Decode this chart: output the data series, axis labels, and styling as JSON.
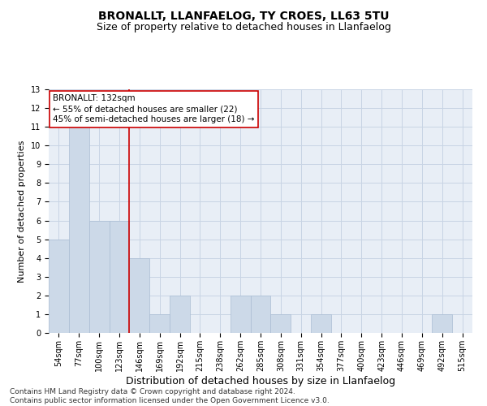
{
  "title_line1": "BRONALLT, LLANFAELOG, TY CROES, LL63 5TU",
  "title_line2": "Size of property relative to detached houses in Llanfaelog",
  "xlabel": "Distribution of detached houses by size in Llanfaelog",
  "ylabel": "Number of detached properties",
  "categories": [
    "54sqm",
    "77sqm",
    "100sqm",
    "123sqm",
    "146sqm",
    "169sqm",
    "192sqm",
    "215sqm",
    "238sqm",
    "262sqm",
    "285sqm",
    "308sqm",
    "331sqm",
    "354sqm",
    "377sqm",
    "400sqm",
    "423sqm",
    "446sqm",
    "469sqm",
    "492sqm",
    "515sqm"
  ],
  "values": [
    5,
    11,
    6,
    6,
    4,
    1,
    2,
    0,
    0,
    2,
    2,
    1,
    0,
    1,
    0,
    0,
    0,
    0,
    0,
    1,
    0
  ],
  "bar_color": "#ccd9e8",
  "bar_edge_color": "#aabdd4",
  "grid_color": "#c8d4e4",
  "background_color": "#e8eef6",
  "vline_x_index": 3.5,
  "vline_color": "#cc0000",
  "annotation_text": "BRONALLT: 132sqm\n← 55% of detached houses are smaller (22)\n45% of semi-detached houses are larger (18) →",
  "annotation_box_facecolor": "#ffffff",
  "annotation_box_edgecolor": "#cc0000",
  "ylim": [
    0,
    13
  ],
  "yticks": [
    0,
    1,
    2,
    3,
    4,
    5,
    6,
    7,
    8,
    9,
    10,
    11,
    12,
    13
  ],
  "footnote": "Contains HM Land Registry data © Crown copyright and database right 2024.\nContains public sector information licensed under the Open Government Licence v3.0.",
  "title_fontsize": 10,
  "subtitle_fontsize": 9,
  "ylabel_fontsize": 8,
  "xlabel_fontsize": 9,
  "tick_fontsize": 7,
  "annotation_fontsize": 7.5,
  "footnote_fontsize": 6.5
}
